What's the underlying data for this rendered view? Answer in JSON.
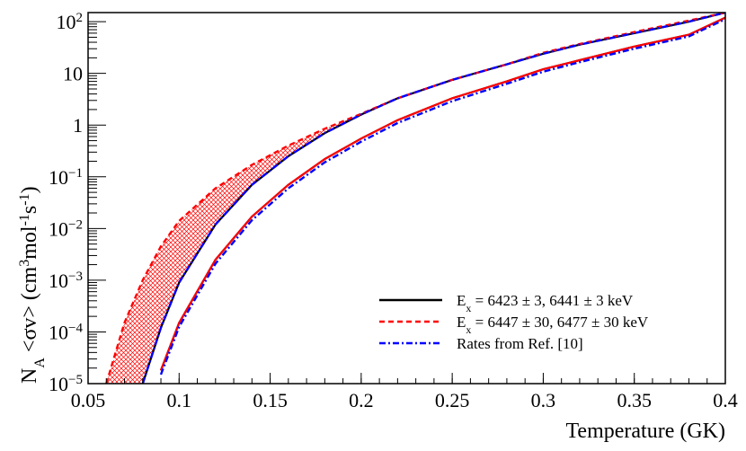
{
  "chart_data": {
    "type": "line",
    "xlabel": "Temperature (GK)",
    "ylabel_parts": {
      "n": "N",
      "n_sub": "A",
      "sigma_v": " <σv> (cm",
      "cm_exp": "3",
      "mol": "mol",
      "mol_exp": "-1",
      "s": "s",
      "s_exp": "-1",
      "close": ")"
    },
    "xlim": [
      0.05,
      0.4
    ],
    "ylim": [
      1e-05,
      150
    ],
    "yscale": "log",
    "x_ticks": [
      {
        "value": 0.05,
        "label": "0.05"
      },
      {
        "value": 0.1,
        "label": "0.1"
      },
      {
        "value": 0.15,
        "label": "0.15"
      },
      {
        "value": 0.2,
        "label": "0.2"
      },
      {
        "value": 0.25,
        "label": "0.25"
      },
      {
        "value": 0.3,
        "label": "0.3"
      },
      {
        "value": 0.35,
        "label": "0.35"
      },
      {
        "value": 0.4,
        "label": "0.4"
      }
    ],
    "y_ticks": [
      {
        "value": 1e-05,
        "base": "10",
        "exp": "−5"
      },
      {
        "value": 0.0001,
        "base": "10",
        "exp": "−4"
      },
      {
        "value": 0.001,
        "base": "10",
        "exp": "−3"
      },
      {
        "value": 0.01,
        "base": "10",
        "exp": "−2"
      },
      {
        "value": 0.1,
        "base": "10",
        "exp": "−1"
      },
      {
        "value": 1,
        "base": "1",
        "exp": ""
      },
      {
        "value": 10,
        "base": "10",
        "exp": ""
      },
      {
        "value": 100,
        "base": "10",
        "exp": "2"
      }
    ],
    "x": [
      0.06,
      0.07,
      0.08,
      0.09,
      0.1,
      0.12,
      0.14,
      0.16,
      0.18,
      0.2,
      0.22,
      0.25,
      0.28,
      0.3,
      0.32,
      0.35,
      0.38,
      0.4
    ],
    "series": [
      {
        "name": "black_upper",
        "color": "#000000",
        "dash": "solid",
        "values": [
          null,
          null,
          1e-05,
          0.00012,
          0.0009,
          0.012,
          0.07,
          0.25,
          0.7,
          1.6,
          3.3,
          7.5,
          15,
          24,
          36,
          60,
          100,
          150
        ]
      },
      {
        "name": "black_lower",
        "color": "#000000",
        "dash": "solid",
        "values": [
          null,
          null,
          null,
          1.8e-05,
          0.00015,
          0.0025,
          0.017,
          0.07,
          0.22,
          0.55,
          1.25,
          3.3,
          7.0,
          12,
          18,
          33,
          56,
          120
        ]
      },
      {
        "name": "red_band_upper",
        "color": "#ff0000",
        "dash": "dashed",
        "values": [
          1e-05,
          0.00015,
          0.001,
          0.0045,
          0.014,
          0.06,
          0.17,
          0.4,
          0.85,
          1.65,
          3.3,
          7.5,
          15,
          25,
          37,
          63,
          105,
          150
        ]
      },
      {
        "name": "red_band_lower",
        "color": "#ff0000",
        "dash": "solid",
        "values": [
          null,
          null,
          null,
          1.8e-05,
          0.00015,
          0.0025,
          0.017,
          0.07,
          0.22,
          0.55,
          1.25,
          3.3,
          7.0,
          12,
          18,
          33,
          56,
          120
        ]
      },
      {
        "name": "blue_upper",
        "color": "#0000ff",
        "dash": "dashdot",
        "values": [
          null,
          null,
          1e-05,
          0.00012,
          0.0009,
          0.012,
          0.07,
          0.25,
          0.7,
          1.6,
          3.3,
          7.5,
          15,
          24,
          36,
          60,
          100,
          150
        ]
      },
      {
        "name": "blue_lower",
        "color": "#0000ff",
        "dash": "dashdot",
        "values": [
          null,
          null,
          null,
          1.5e-05,
          0.000125,
          0.0021,
          0.0145,
          0.06,
          0.19,
          0.48,
          1.1,
          2.9,
          6.3,
          10.8,
          16.5,
          30,
          52,
          112
        ]
      }
    ],
    "band": {
      "upper": "red_band_upper",
      "lower": "black_upper",
      "color": "#ff0000",
      "hatch": "crosshatch"
    },
    "legend": {
      "position": "bottom-right",
      "entries": [
        {
          "color": "#000000",
          "dash": "solid",
          "prefix": "E",
          "sub": "x",
          "text": " = 6423 ± 3, 6441 ± 3 keV"
        },
        {
          "color": "#ff0000",
          "dash": "dashed",
          "prefix": "E",
          "sub": "x",
          "text": " = 6447 ± 30, 6477 ± 30 keV"
        },
        {
          "color": "#0000ff",
          "dash": "dashdot",
          "prefix": "",
          "sub": "",
          "text": "Rates from Ref. [10]"
        }
      ]
    }
  }
}
